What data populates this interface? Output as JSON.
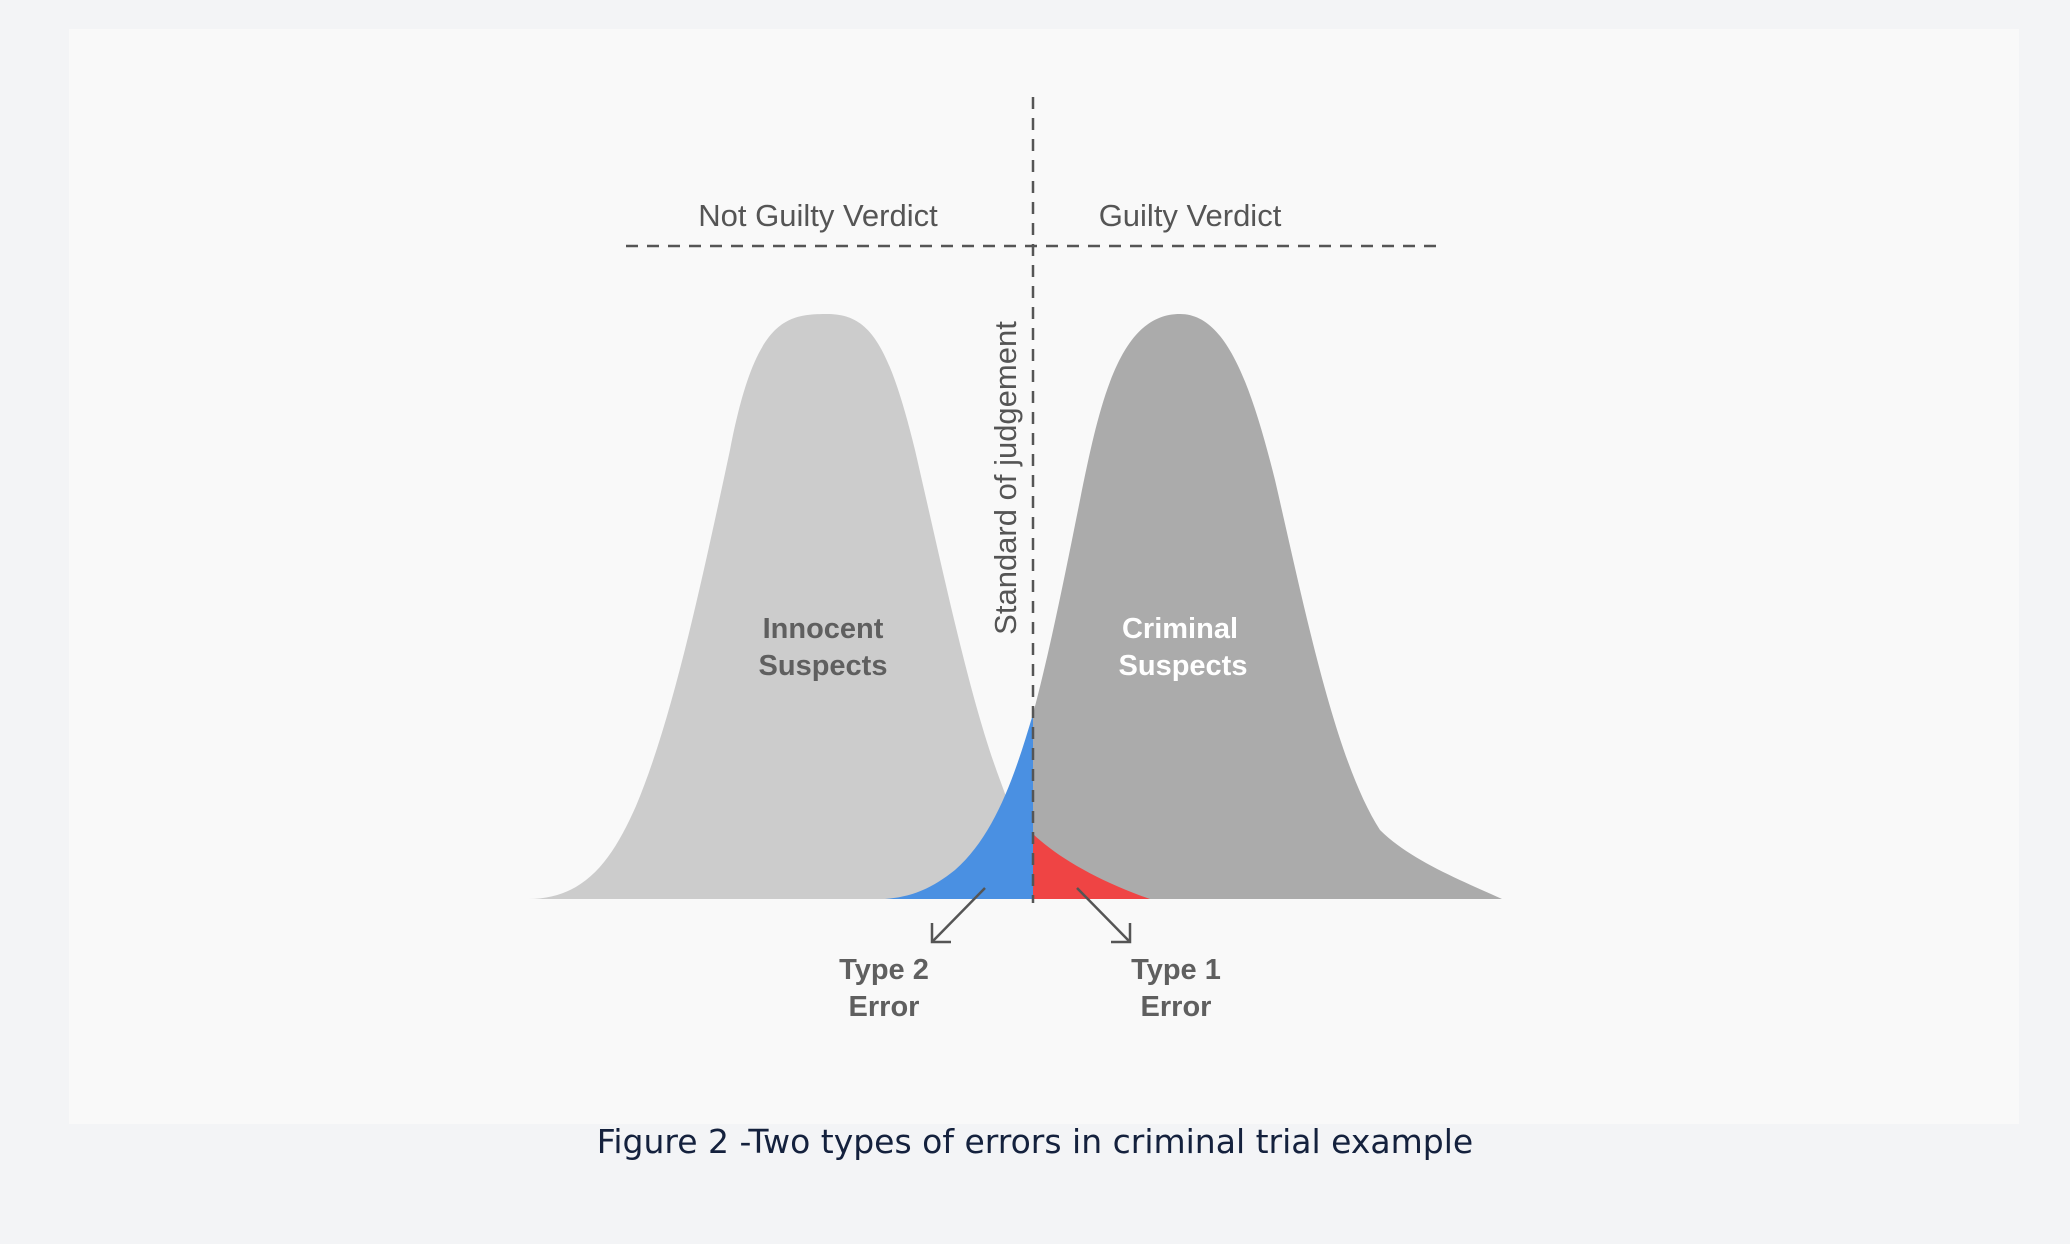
{
  "diagram": {
    "verdicts": {
      "left": "Not Guilty Verdict",
      "right": "Guilty Verdict"
    },
    "threshold_label": "Standard of judgement",
    "distributions": {
      "innocent": {
        "line1": "Innocent",
        "line2": "Suspects",
        "fill_color": "#cccccc"
      },
      "criminal": {
        "line1": "Criminal",
        "line2": "Suspects",
        "fill_color": "#ababab"
      }
    },
    "errors": {
      "type2": {
        "line1": "Type 2",
        "line2": "Error",
        "color": "#4a90e2"
      },
      "type1": {
        "line1": "Type 1",
        "line2": "Error",
        "color": "#ef4444"
      }
    }
  },
  "caption": "Figure 2 -Two types of errors in criminal trial example"
}
